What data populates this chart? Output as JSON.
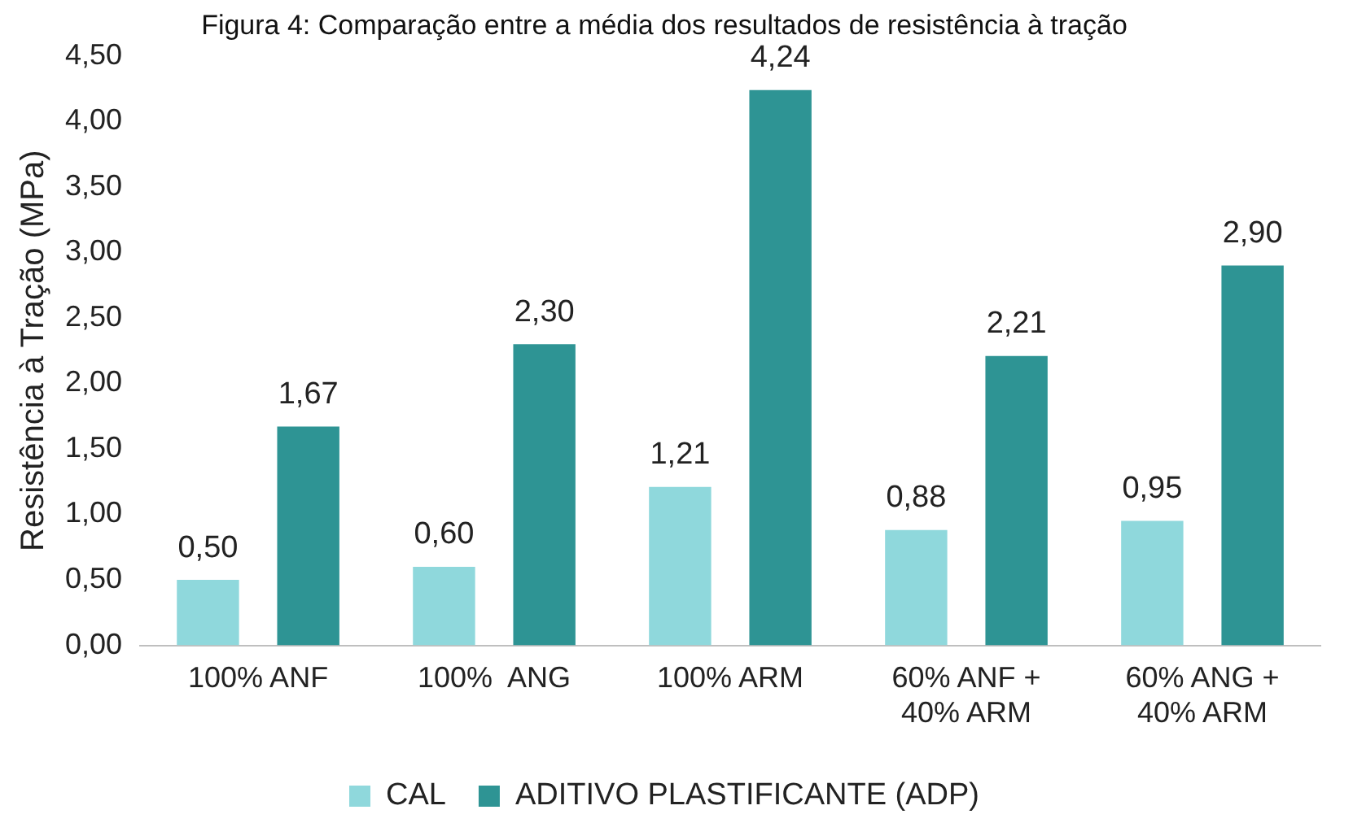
{
  "chart_data": {
    "type": "bar",
    "title": "Figura 4: Comparação entre a média dos resultados de resistência à tração",
    "ylabel": "Resistência à Tração (MPa)",
    "categories": [
      "100% ANF",
      "100%  ANG",
      "100% ARM",
      "60% ANF +\n40% ARM",
      "60% ANG +\n40% ARM"
    ],
    "series": [
      {
        "name": "CAL",
        "color": "#8fd8dc",
        "values": [
          0.5,
          0.6,
          1.21,
          0.88,
          0.95
        ],
        "value_labels": [
          "0,50",
          "0,60",
          "1,21",
          "0,88",
          "0,95"
        ]
      },
      {
        "name": "ADITIVO PLASTIFICANTE (ADP)",
        "color": "#2e9494",
        "values": [
          1.67,
          2.3,
          4.24,
          2.21,
          2.9
        ],
        "value_labels": [
          "1,67",
          "2,30",
          "4,24",
          "2,21",
          "2,90"
        ]
      }
    ],
    "ylim": [
      0,
      4.5
    ],
    "yticks": [
      {
        "value": 0,
        "label": "0,00"
      },
      {
        "value": 0.5,
        "label": "0,50"
      },
      {
        "value": 1,
        "label": "1,00"
      },
      {
        "value": 1.5,
        "label": "1,50"
      },
      {
        "value": 2,
        "label": "2,00"
      },
      {
        "value": 2.5,
        "label": "2,50"
      },
      {
        "value": 3,
        "label": "3,00"
      },
      {
        "value": 3.5,
        "label": "3,50"
      },
      {
        "value": 4,
        "label": "4,00"
      },
      {
        "value": 4.5,
        "label": "4,50"
      }
    ],
    "grid": false,
    "legend": "bottom"
  }
}
